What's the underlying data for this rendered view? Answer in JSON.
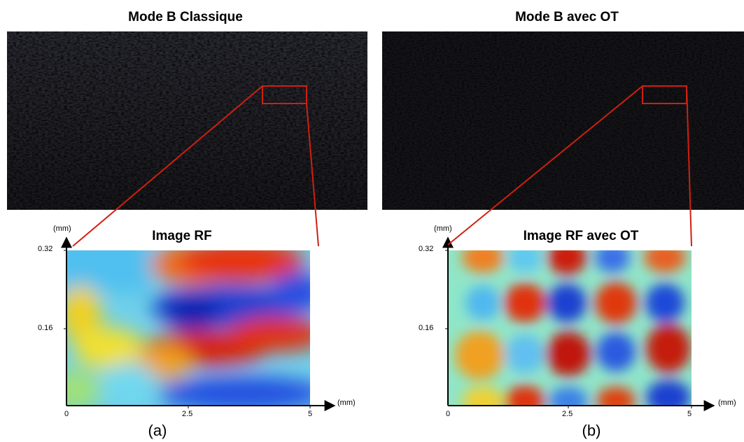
{
  "panels": [
    {
      "id": "a",
      "bmode_title": "Mode B Classique",
      "rf_title": "Image RF",
      "caption": "(a)",
      "y_unit": "(mm)",
      "x_unit": "(mm)",
      "y_ticks": [
        "0.32",
        "0.16"
      ],
      "x_ticks": [
        "0",
        "2.5",
        "5"
      ]
    },
    {
      "id": "b",
      "bmode_title": "Mode B avec OT",
      "rf_title": "Image RF avec OT",
      "caption": "(b)",
      "y_unit": "(mm)",
      "x_unit": "(mm)",
      "y_ticks": [
        "0.32",
        "0.16"
      ],
      "x_ticks": [
        "0",
        "2.5",
        "5"
      ]
    }
  ],
  "colors": {
    "zoom_line": "#d02010",
    "jet_red": "#cc1a10",
    "jet_blue": "#1a3fd0",
    "jet_cyan": "#7fe8f0"
  }
}
